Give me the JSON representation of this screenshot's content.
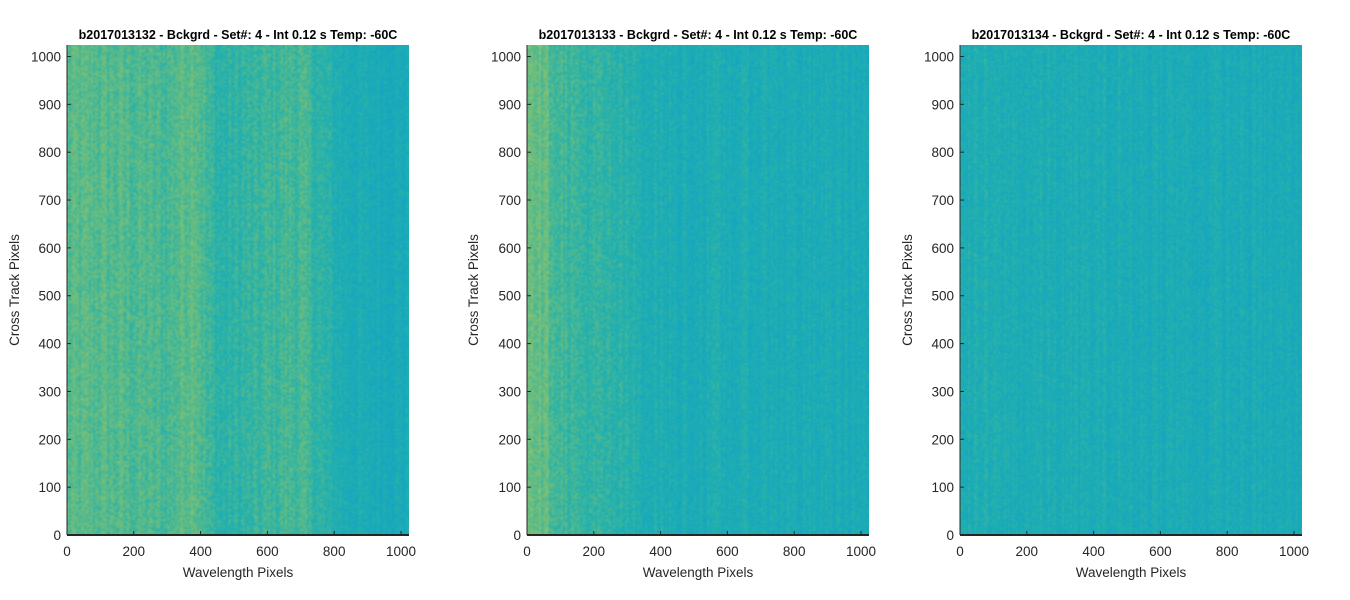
{
  "chart_data": [
    {
      "type": "heatmap",
      "title": "b2017013132 - Bckgrd - Set#: 4 - Int 0.12 s Temp: -60C",
      "xlabel": "Wavelength Pixels",
      "ylabel": "Cross Track Pixels",
      "xlim": [
        0,
        1024
      ],
      "ylim": [
        0,
        1024
      ],
      "xticks": [
        0,
        200,
        400,
        600,
        800,
        1000
      ],
      "yticks": [
        0,
        100,
        200,
        300,
        400,
        500,
        600,
        700,
        800,
        900,
        1000
      ],
      "colormap": "parula",
      "column_profile": {
        "x": [
          0,
          100,
          200,
          300,
          380,
          420,
          460,
          550,
          650,
          700,
          760,
          820,
          900,
          1024
        ],
        "level": [
          0.56,
          0.57,
          0.55,
          0.53,
          0.62,
          0.5,
          0.44,
          0.47,
          0.52,
          0.53,
          0.45,
          0.38,
          0.35,
          0.34
        ]
      }
    },
    {
      "type": "heatmap",
      "title": "b2017013133 - Bckgrd - Set#: 4 - Int 0.12 s Temp: -60C",
      "xlabel": "Wavelength Pixels",
      "ylabel": "Cross Track Pixels",
      "xlim": [
        0,
        1024
      ],
      "ylim": [
        0,
        1024
      ],
      "xticks": [
        0,
        200,
        400,
        600,
        800,
        1000
      ],
      "yticks": [
        0,
        100,
        200,
        300,
        400,
        500,
        600,
        700,
        800,
        900,
        1000
      ],
      "colormap": "parula",
      "column_profile": {
        "x": [
          0,
          30,
          80,
          150,
          250,
          350,
          450,
          550,
          650,
          750,
          850,
          950,
          1024
        ],
        "level": [
          0.66,
          0.62,
          0.55,
          0.48,
          0.44,
          0.4,
          0.36,
          0.37,
          0.36,
          0.37,
          0.35,
          0.36,
          0.34
        ]
      }
    },
    {
      "type": "heatmap",
      "title": "b2017013134 - Bckgrd - Set#: 4 - Int 0.12 s Temp: -60C",
      "xlabel": "Wavelength Pixels",
      "ylabel": "Cross Track Pixels",
      "xlim": [
        0,
        1024
      ],
      "ylim": [
        0,
        1024
      ],
      "xticks": [
        0,
        200,
        400,
        600,
        800,
        1000
      ],
      "yticks": [
        0,
        100,
        200,
        300,
        400,
        500,
        600,
        700,
        800,
        900,
        1000
      ],
      "colormap": "parula",
      "column_profile": {
        "x": [
          0,
          200,
          400,
          600,
          800,
          1024
        ],
        "level": [
          0.38,
          0.37,
          0.36,
          0.36,
          0.35,
          0.34
        ]
      }
    }
  ]
}
